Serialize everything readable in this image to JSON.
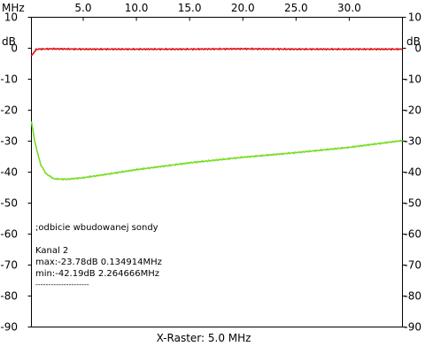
{
  "chart_data": {
    "type": "line",
    "x_unit": "MHz",
    "y_unit": "dB",
    "xlim": [
      0.134914,
      35.0
    ],
    "ylim": [
      -90,
      10
    ],
    "x_ticks": [
      "5.0",
      "10.0",
      "15.0",
      "20.0",
      "25.0",
      "30.0"
    ],
    "y_ticks_left": [
      "10",
      "0",
      "-10",
      "-20",
      "-30",
      "-40",
      "-50",
      "-60",
      "-70",
      "-80",
      "-90"
    ],
    "y_ticks_right": [
      "10",
      "0",
      "-10",
      "-20",
      "-30",
      "-40",
      "-50",
      "-60",
      "-70",
      "-80",
      "-90"
    ],
    "xlabel": "X-Raster: 5.0 MHz",
    "grid": false,
    "series": [
      {
        "color": "#dd1111",
        "x": [
          0.134914,
          0.6,
          2,
          5,
          10,
          15,
          20,
          25,
          30,
          35
        ],
        "y": [
          -2.5,
          -0.3,
          -0.2,
          -0.3,
          -0.3,
          -0.3,
          -0.2,
          -0.3,
          -0.3,
          -0.3
        ]
      },
      {
        "name": "Kanal 2",
        "color": "#77dd22",
        "x": [
          0.134914,
          0.5,
          1.0,
          1.5,
          2.264666,
          3.5,
          5,
          7,
          10,
          15,
          20,
          25,
          30,
          35
        ],
        "y": [
          -23.78,
          -31.0,
          -37.5,
          -40.5,
          -42.19,
          -42.3,
          -41.8,
          -40.8,
          -39.2,
          -37.0,
          -35.2,
          -33.7,
          -32.0,
          -29.8
        ]
      }
    ],
    "annotations": [
      ";odbicie wbudowanej sondy",
      "Kanal 2",
      "max:-23.78dB 0.134914MHz",
      "min:-42.19dB 2.264666MHz",
      "---------------------"
    ]
  }
}
